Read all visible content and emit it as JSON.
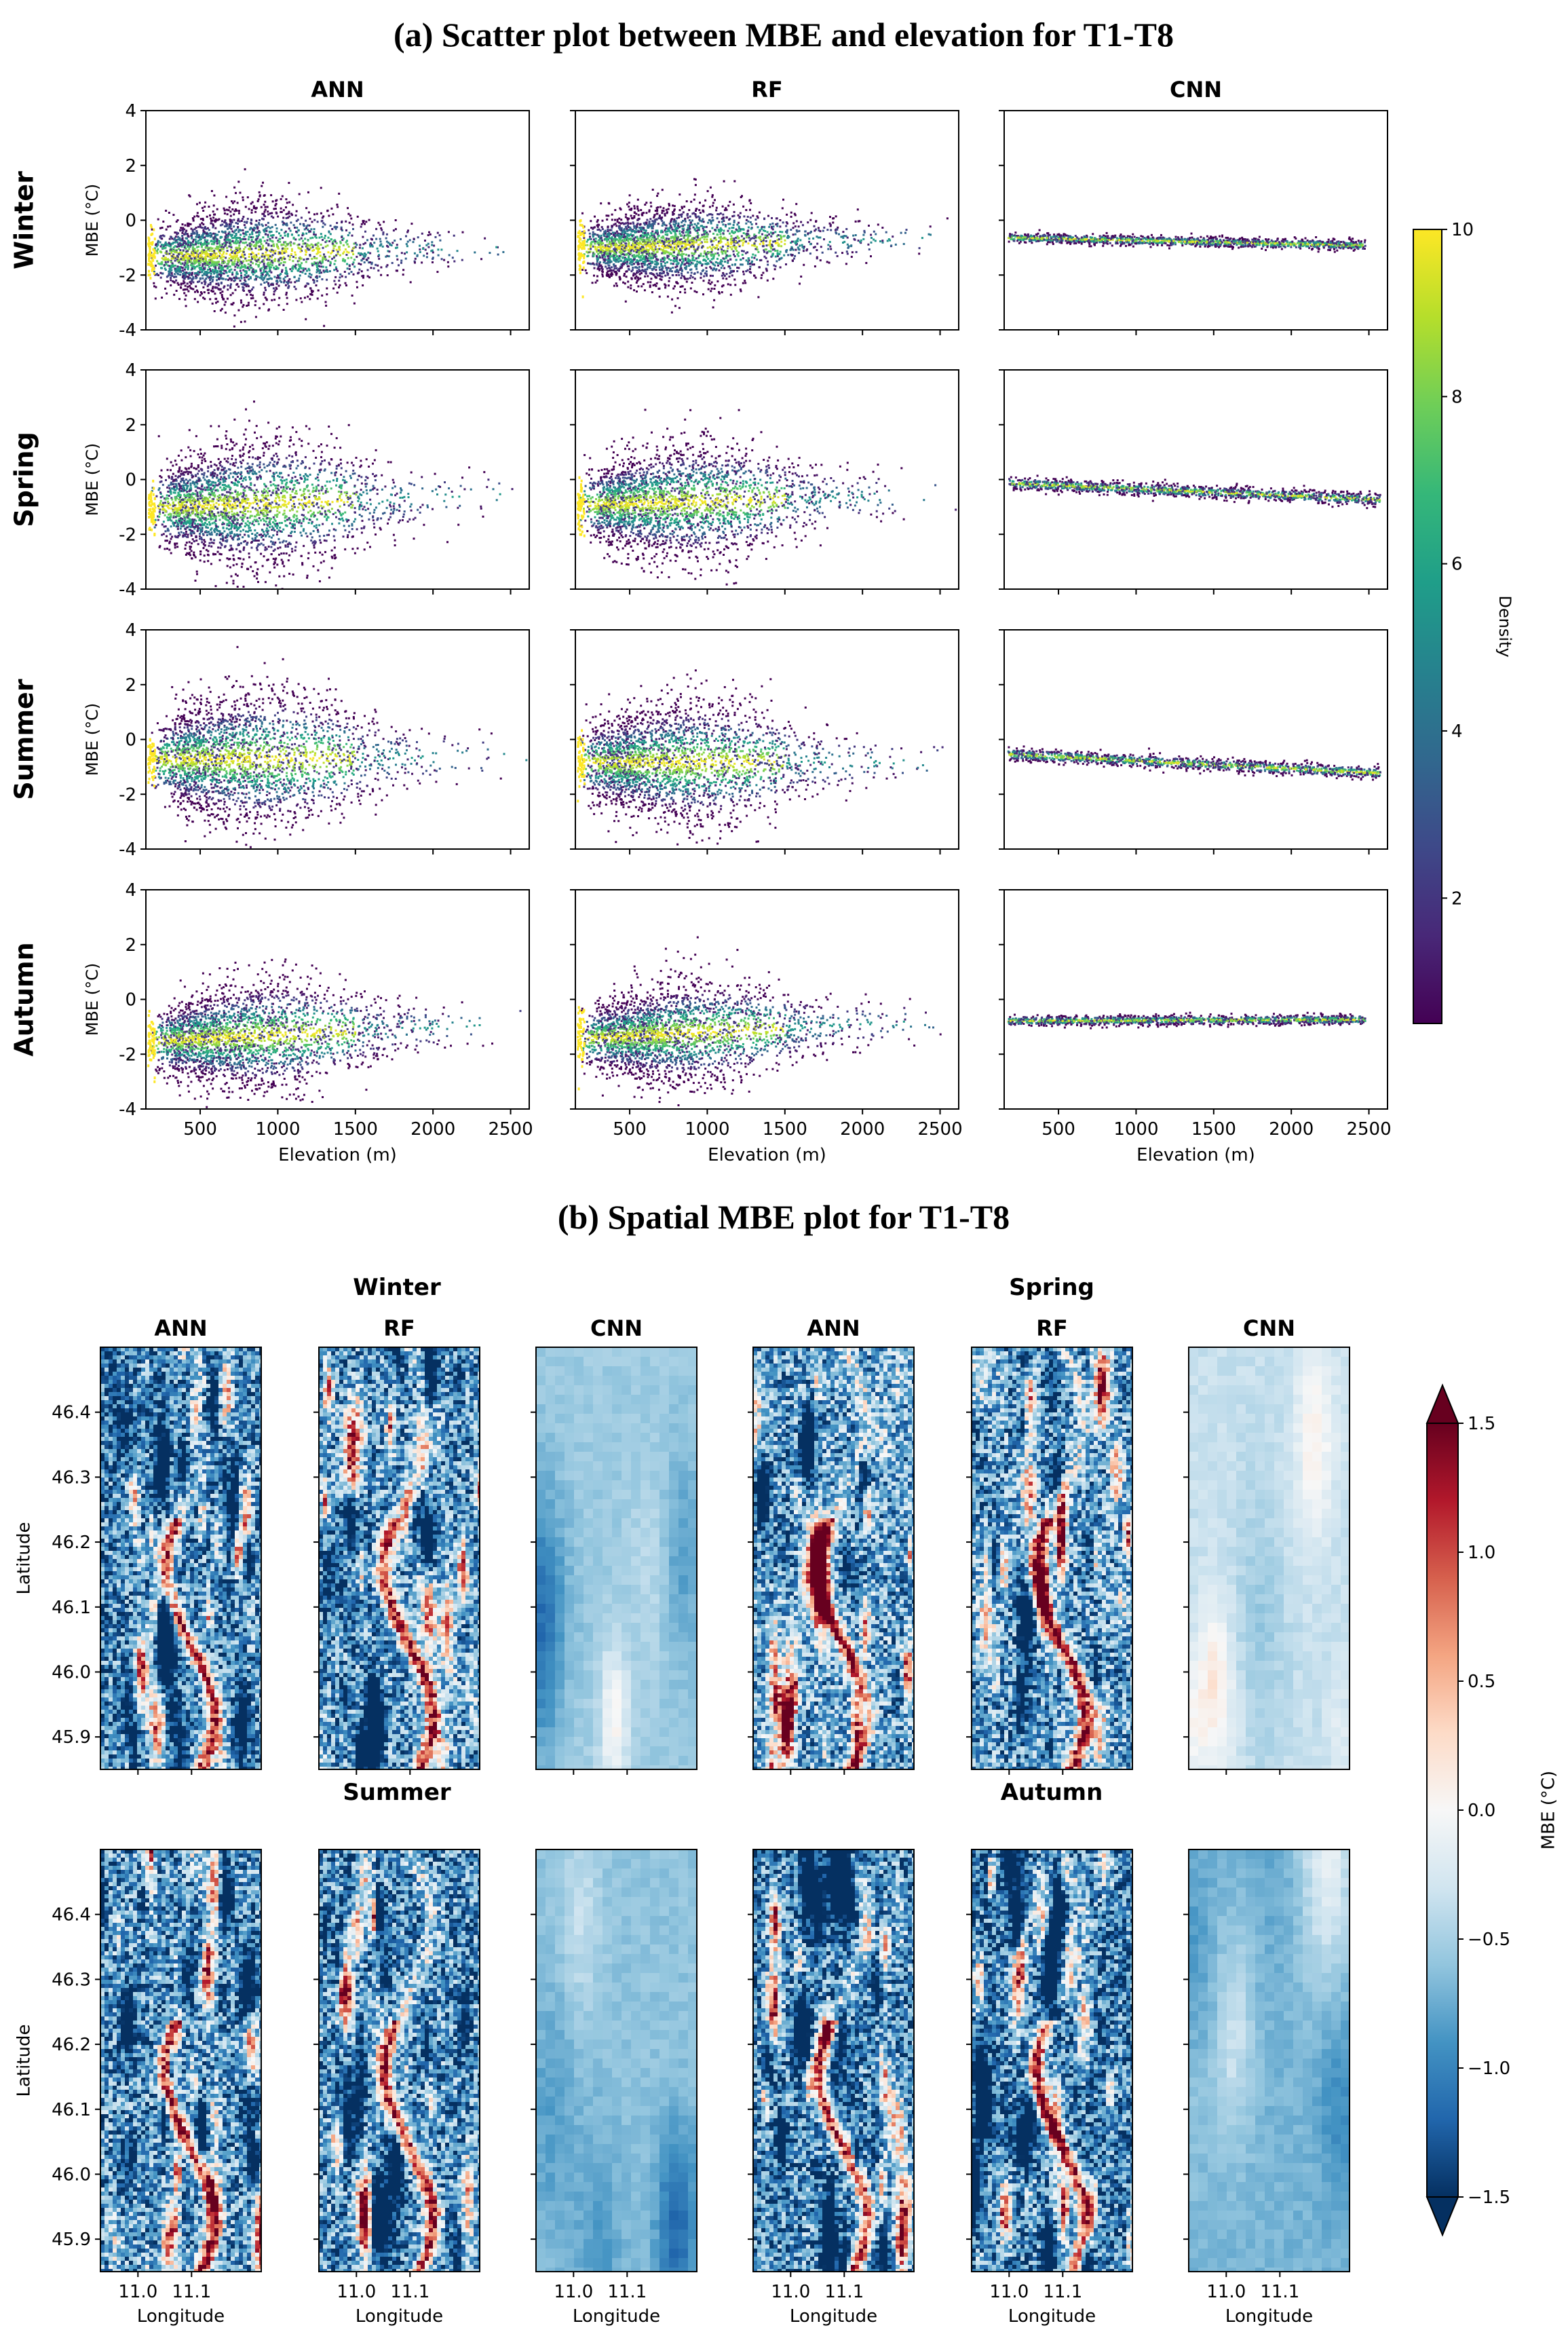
{
  "chart_data": [
    {
      "type": "scatter",
      "title": "(a) Scatter plot between MBE and elevation for T1-T8",
      "columns": [
        "ANN",
        "RF",
        "CNN"
      ],
      "rows": [
        "Winter",
        "Spring",
        "Summer",
        "Autumn"
      ],
      "xlabel": "Elevation (m)",
      "ylabel": "MBE (°C)",
      "xlim": [
        150,
        2620
      ],
      "ylim": [
        -4,
        4
      ],
      "xticks": [
        500,
        1000,
        1500,
        2000,
        2500
      ],
      "yticks": [
        -4,
        -2,
        0,
        2,
        4
      ],
      "colorbar": {
        "label": "Density",
        "min": 0.5,
        "max": 10,
        "ticks": [
          2,
          4,
          6,
          8,
          10
        ],
        "colormap": "viridis"
      },
      "panels": [
        {
          "row": "Winter",
          "col": "ANN",
          "center_mbe_low": -1.3,
          "center_mbe_high": -0.9,
          "spread": 1.5,
          "seed": 11
        },
        {
          "row": "Winter",
          "col": "RF",
          "center_mbe_low": -1.0,
          "center_mbe_high": -0.6,
          "spread": 1.3,
          "seed": 12
        },
        {
          "row": "Winter",
          "col": "CNN",
          "center_mbe_low": -0.6,
          "center_mbe_high": -0.9,
          "spread": 0.2,
          "seed": 13
        },
        {
          "row": "Spring",
          "col": "ANN",
          "center_mbe_low": -1.0,
          "center_mbe_high": -0.5,
          "spread": 1.9,
          "seed": 21
        },
        {
          "row": "Spring",
          "col": "RF",
          "center_mbe_low": -0.9,
          "center_mbe_high": -0.5,
          "spread": 1.7,
          "seed": 22
        },
        {
          "row": "Spring",
          "col": "CNN",
          "center_mbe_low": -0.1,
          "center_mbe_high": -0.7,
          "spread": 0.25,
          "seed": 23
        },
        {
          "row": "Summer",
          "col": "ANN",
          "center_mbe_low": -0.7,
          "center_mbe_high": -0.6,
          "spread": 2.0,
          "seed": 31
        },
        {
          "row": "Summer",
          "col": "RF",
          "center_mbe_low": -0.8,
          "center_mbe_high": -0.8,
          "spread": 1.8,
          "seed": 32
        },
        {
          "row": "Summer",
          "col": "CNN",
          "center_mbe_low": -0.5,
          "center_mbe_high": -1.2,
          "spread": 0.25,
          "seed": 33
        },
        {
          "row": "Autumn",
          "col": "ANN",
          "center_mbe_low": -1.5,
          "center_mbe_high": -0.8,
          "spread": 1.6,
          "seed": 41
        },
        {
          "row": "Autumn",
          "col": "RF",
          "center_mbe_low": -1.4,
          "center_mbe_high": -0.7,
          "spread": 1.5,
          "seed": 42
        },
        {
          "row": "Autumn",
          "col": "CNN",
          "center_mbe_low": -0.75,
          "center_mbe_high": -0.7,
          "spread": 0.2,
          "seed": 43
        }
      ]
    },
    {
      "type": "heatmap",
      "title": "(b) Spatial MBE plot for T1-T8",
      "season_headers": [
        "Winter",
        "Spring",
        "Summer",
        "Autumn"
      ],
      "columns": [
        "ANN",
        "RF",
        "CNN",
        "ANN",
        "RF",
        "CNN"
      ],
      "xlabel": "Longitude",
      "ylabel": "Latitude",
      "xlim": [
        10.93,
        11.23
      ],
      "ylim": [
        45.85,
        46.5
      ],
      "xticks": [
        "11.0",
        "11.1"
      ],
      "yticks": [
        "45.9",
        "46.0",
        "46.1",
        "46.2",
        "46.3",
        "46.4"
      ],
      "colorbar": {
        "label": "MBE (°C)",
        "min": -1.5,
        "max": 1.5,
        "ticks": [
          "1.5",
          "1.0",
          "0.5",
          "0.0",
          "−0.5",
          "−1.0",
          "−1.5"
        ],
        "colors": [
          "#053061",
          "#2166ac",
          "#4393c3",
          "#92c5de",
          "#d1e5f0",
          "#f7f7f7",
          "#fddbc7",
          "#f4a582",
          "#d6604d",
          "#b2182b",
          "#67001f"
        ]
      },
      "panels": [
        {
          "season": "Winter",
          "model": "ANN",
          "mean_mbe": -1.0,
          "seed": 101
        },
        {
          "season": "Winter",
          "model": "RF",
          "mean_mbe": -0.9,
          "seed": 102
        },
        {
          "season": "Winter",
          "model": "CNN",
          "mean_mbe": -0.55,
          "seed": 103
        },
        {
          "season": "Spring",
          "model": "ANN",
          "mean_mbe": -0.8,
          "seed": 104
        },
        {
          "season": "Spring",
          "model": "RF",
          "mean_mbe": -0.85,
          "seed": 105
        },
        {
          "season": "Spring",
          "model": "CNN",
          "mean_mbe": -0.35,
          "seed": 106
        },
        {
          "season": "Summer",
          "model": "ANN",
          "mean_mbe": -0.9,
          "seed": 107
        },
        {
          "season": "Summer",
          "model": "RF",
          "mean_mbe": -0.95,
          "seed": 108
        },
        {
          "season": "Summer",
          "model": "CNN",
          "mean_mbe": -0.6,
          "seed": 109
        },
        {
          "season": "Autumn",
          "model": "ANN",
          "mean_mbe": -1.0,
          "seed": 110
        },
        {
          "season": "Autumn",
          "model": "RF",
          "mean_mbe": -1.05,
          "seed": 111
        },
        {
          "season": "Autumn",
          "model": "CNN",
          "mean_mbe": -0.7,
          "seed": 112
        }
      ]
    }
  ]
}
